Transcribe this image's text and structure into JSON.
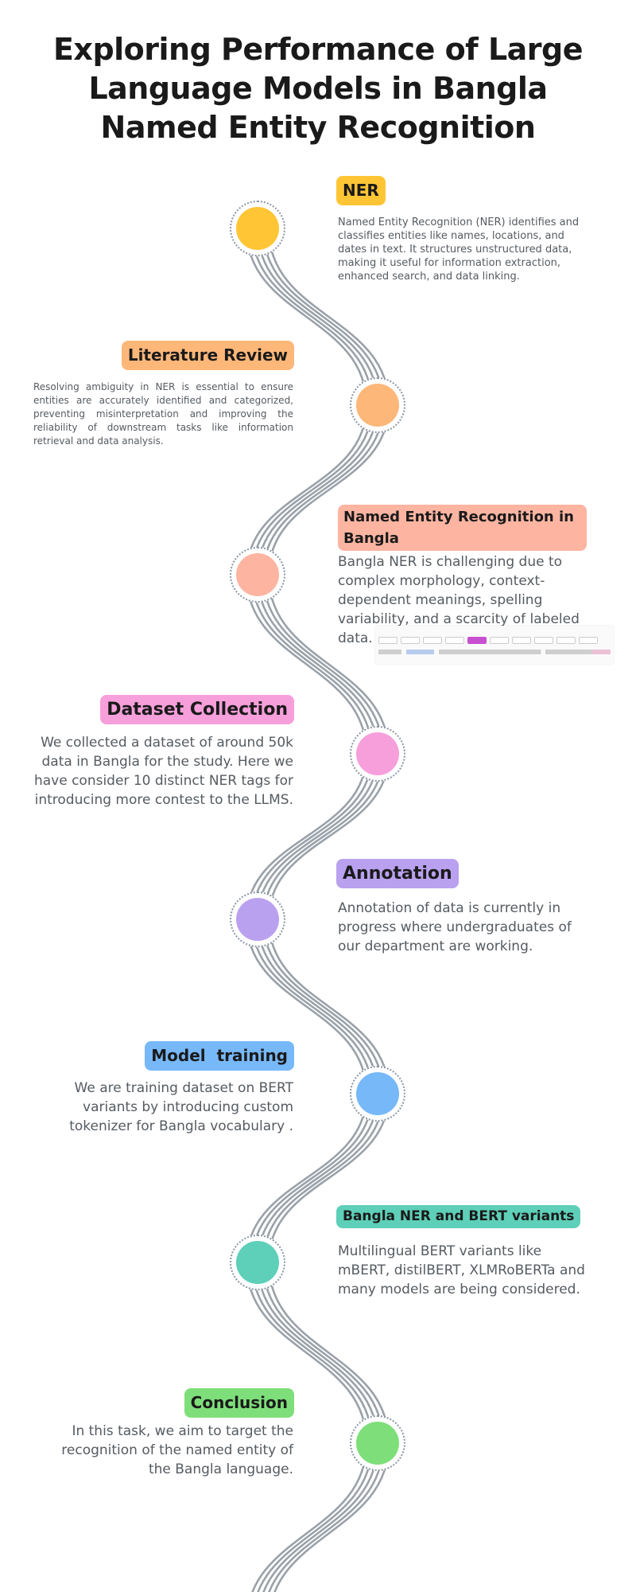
{
  "title": "Exploring Performance of Large Language Models in Bangla Named Entity Recognition",
  "colors": {
    "ner": "#FFC535",
    "literature": "#FDB779",
    "bangla_ner": "#FDB5A2",
    "dataset": "#F79FDB",
    "annotation": "#B9A1F0",
    "model": "#77B8F8",
    "variants": "#5ECFB8",
    "conclusion": "#7EDF7A",
    "road": "#9AA1A8"
  },
  "steps": [
    {
      "label": "NER",
      "text": "Named Entity Recognition (NER) identifies and classifies entities like names, locations, and dates in text. It structures unstructured data, making it useful for information extraction, enhanced search, and data linking."
    },
    {
      "label": "Literature Review",
      "text": "Resolving ambiguity in NER is essential to ensure entities are accurately identified and categorized, preventing misinterpretation and improving the reliability of downstream tasks like information retrieval and data analysis."
    },
    {
      "label": "Named Entity Recognition in Bangla",
      "text": "Bangla NER is challenging due to complex morphology, context-dependent meanings, spelling variability, and a scarcity of labeled data."
    },
    {
      "label": "Dataset Collection",
      "text": "We collected a dataset of around 50k data in Bangla for the study. Here we have consider 10 distinct NER tags for introducing more contest to the LLMS."
    },
    {
      "label": "Annotation",
      "text": "Annotation of data is currently in progress where undergraduates of our department are working."
    },
    {
      "label": "Model  training",
      "text": "We are training dataset on BERT variants by introducing custom tokenizer for Bangla vocabulary ."
    },
    {
      "label": "Bangla NER and BERT variants",
      "text": "Multilingual BERT variants like mBERT, distilBERT, XLMRoBERTa and many models are being considered."
    },
    {
      "label": "Conclusion",
      "text": "In this task, we aim to target the recognition of the named entity of the Bangla language."
    }
  ]
}
